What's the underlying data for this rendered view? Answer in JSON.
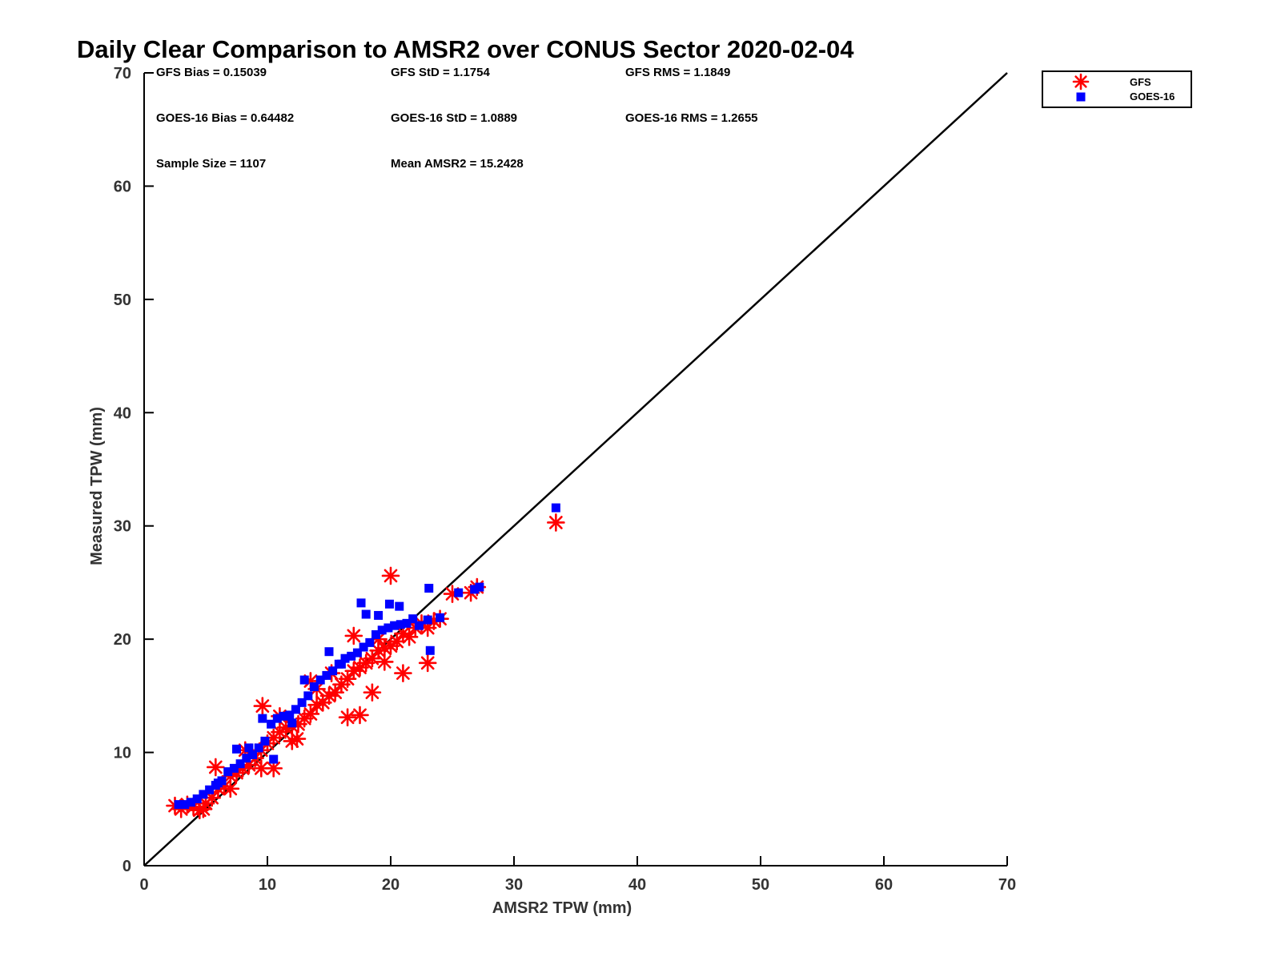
{
  "chart_data": {
    "type": "scatter",
    "title": "Daily Clear Comparison to AMSR2 over CONUS Sector 2020-02-04",
    "xlabel": "AMSR2 TPW (mm)",
    "ylabel": "Measured TPW (mm)",
    "xlim": [
      0,
      70
    ],
    "ylim": [
      0,
      70
    ],
    "x_ticks": [
      "0",
      "10",
      "20",
      "30",
      "40",
      "50",
      "60",
      "70"
    ],
    "y_ticks": [
      "0",
      "10",
      "20",
      "30",
      "40",
      "50",
      "60",
      "70"
    ],
    "grid": false,
    "legend_position": "outside top-right",
    "reference_line": {
      "x": [
        0,
        70
      ],
      "y": [
        0,
        70
      ],
      "color": "#000000"
    },
    "stats": {
      "gfs_bias": "GFS Bias = 0.15039",
      "gfs_std": "GFS StD = 1.1754",
      "gfs_rms": "GFS RMS = 1.1849",
      "goes_bias": "GOES-16 Bias = 0.64482",
      "goes_std": "GOES-16 StD = 1.0889",
      "goes_rms": "GOES-16 RMS = 1.2655",
      "sample_size": "Sample Size = 1107",
      "mean_amsr2": "Mean AMSR2 = 15.2428"
    },
    "series": [
      {
        "name": "GFS",
        "marker": "asterisk",
        "color": "#ff0000",
        "x": [
          2.5,
          3.0,
          3.5,
          4.0,
          4.5,
          4.8,
          5.0,
          5.5,
          6.0,
          6.5,
          7.0,
          7.5,
          8.0,
          8.5,
          9.0,
          9.5,
          10.0,
          10.5,
          11.0,
          11.5,
          12.0,
          12.5,
          13.0,
          13.5,
          14.0,
          14.5,
          15.0,
          15.5,
          16.0,
          16.5,
          17.0,
          17.5,
          18.0,
          18.5,
          19.0,
          19.5,
          20.0,
          20.5,
          21.0,
          21.5,
          22.0,
          22.5,
          23.0,
          23.5,
          24.0,
          5.8,
          7.0,
          9.5,
          10.5,
          12.0,
          16.5,
          17.5,
          18.5,
          20.0,
          21.0,
          23.0,
          25.0,
          26.5,
          27.0,
          33.4,
          9.6,
          12.4,
          13.5,
          15.2,
          17.0,
          19.0,
          8.2,
          11.0,
          14.0,
          19.5
        ],
        "y": [
          5.3,
          5.0,
          5.4,
          5.2,
          4.9,
          5.0,
          5.5,
          6.0,
          6.8,
          7.0,
          7.9,
          8.2,
          8.6,
          8.9,
          9.5,
          10.2,
          10.8,
          11.3,
          11.8,
          12.2,
          12.3,
          12.5,
          13.0,
          13.4,
          14.2,
          14.4,
          15.0,
          15.3,
          16.0,
          16.5,
          17.2,
          17.5,
          17.9,
          18.3,
          19.0,
          19.2,
          19.4,
          19.8,
          20.5,
          20.2,
          21.0,
          21.4,
          21.0,
          21.6,
          21.8,
          8.7,
          6.8,
          8.6,
          8.6,
          11.0,
          13.1,
          13.3,
          15.3,
          25.6,
          17.0,
          17.9,
          24.0,
          24.1,
          24.6,
          30.3,
          14.1,
          11.2,
          16.3,
          17.0,
          20.3,
          20.0,
          10.2,
          13.2,
          15.6,
          18.0
        ]
      },
      {
        "name": "GOES-16",
        "marker": "square",
        "color": "#0000ff",
        "x": [
          2.8,
          3.3,
          3.8,
          4.3,
          4.8,
          5.3,
          5.8,
          6.3,
          6.8,
          7.3,
          7.8,
          8.3,
          8.8,
          9.3,
          9.8,
          10.3,
          10.8,
          11.3,
          11.8,
          12.3,
          12.8,
          13.3,
          13.8,
          14.3,
          14.8,
          15.3,
          15.8,
          16.3,
          16.8,
          17.3,
          17.8,
          18.3,
          18.8,
          19.3,
          19.8,
          20.3,
          20.8,
          21.3,
          21.8,
          22.3,
          23.2,
          24.0,
          25.5,
          26.8,
          27.2,
          33.4,
          17.6,
          19.0,
          19.9,
          20.7,
          23.1,
          23.0,
          9.6,
          12.0,
          13.0,
          15.0,
          16.0,
          18.0,
          6.0,
          7.5,
          8.5,
          10.5
        ],
        "y": [
          5.4,
          5.4,
          5.6,
          5.9,
          6.3,
          6.7,
          7.1,
          7.5,
          8.3,
          8.6,
          9.0,
          9.5,
          9.8,
          10.4,
          11.0,
          12.5,
          13.0,
          13.2,
          13.3,
          13.8,
          14.4,
          15.0,
          15.8,
          16.4,
          16.8,
          17.2,
          17.8,
          18.3,
          18.5,
          18.8,
          19.3,
          19.7,
          20.4,
          20.8,
          21.0,
          21.2,
          21.3,
          21.4,
          21.8,
          21.2,
          19.0,
          21.9,
          24.1,
          24.4,
          24.6,
          31.6,
          23.2,
          22.1,
          23.1,
          22.9,
          24.5,
          21.7,
          13.0,
          12.6,
          16.4,
          18.9,
          17.8,
          22.2,
          7.3,
          10.3,
          10.4,
          9.4
        ]
      }
    ]
  }
}
